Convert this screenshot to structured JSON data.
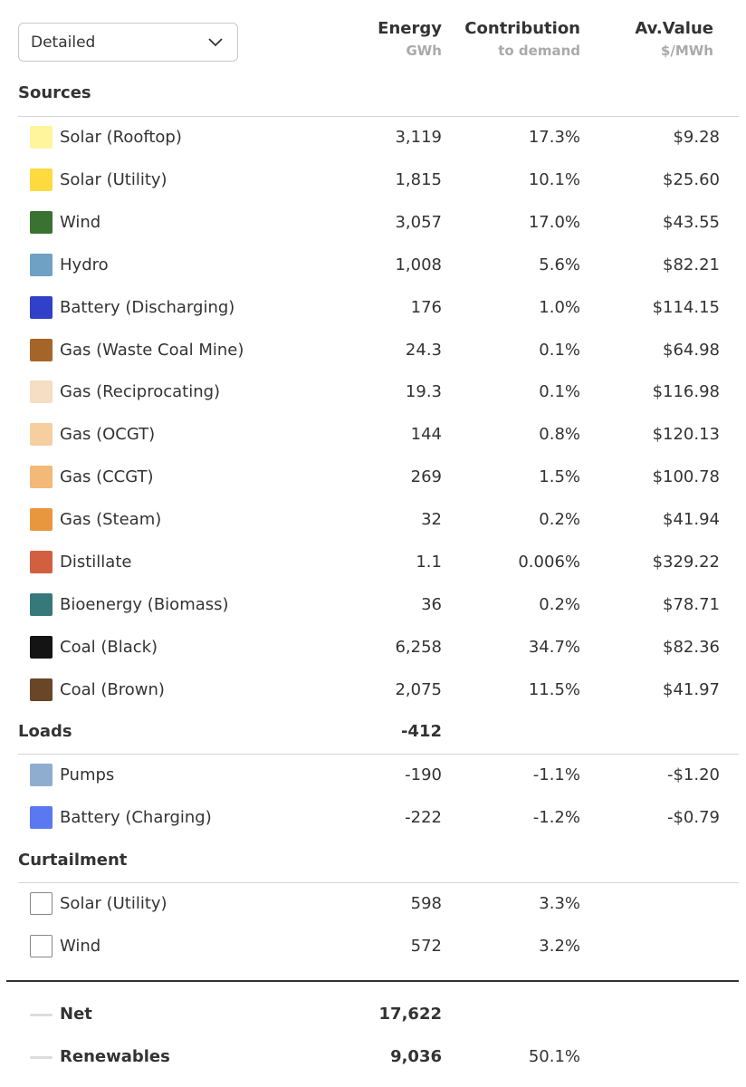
{
  "dropdown": {
    "value": "Detailed",
    "icon": "chevron-down-icon"
  },
  "columns": {
    "energy": {
      "title": "Energy",
      "unit": "GWh"
    },
    "contribution": {
      "title": "Contribution",
      "unit": "to demand"
    },
    "value": {
      "title": "Av.Value",
      "unit": "$/MWh"
    }
  },
  "sources": {
    "title": "Sources",
    "items": [
      {
        "name": "Solar (Rooftop)",
        "color": "#FFF59D",
        "energy": "3,119",
        "contribution": "17.3%",
        "value": "$9.28"
      },
      {
        "name": "Solar (Utility)",
        "color": "#FDDB40",
        "energy": "1,815",
        "contribution": "10.1%",
        "value": "$25.60"
      },
      {
        "name": "Wind",
        "color": "#3A7331",
        "energy": "3,057",
        "contribution": "17.0%",
        "value": "$43.55"
      },
      {
        "name": "Hydro",
        "color": "#6FA1C4",
        "energy": "1,008",
        "contribution": "5.6%",
        "value": "$82.21"
      },
      {
        "name": "Battery (Discharging)",
        "color": "#3040C8",
        "energy": "176",
        "contribution": "1.0%",
        "value": "$114.15"
      },
      {
        "name": "Gas (Waste Coal Mine)",
        "color": "#A56428",
        "energy": "24.3",
        "contribution": "0.1%",
        "value": "$64.98"
      },
      {
        "name": "Gas (Reciprocating)",
        "color": "#F5DEC4",
        "energy": "19.3",
        "contribution": "0.1%",
        "value": "$116.98"
      },
      {
        "name": "Gas (OCGT)",
        "color": "#F6CFA1",
        "energy": "144",
        "contribution": "0.8%",
        "value": "$120.13"
      },
      {
        "name": "Gas (CCGT)",
        "color": "#F2B978",
        "energy": "269",
        "contribution": "1.5%",
        "value": "$100.78"
      },
      {
        "name": "Gas (Steam)",
        "color": "#E8973F",
        "energy": "32",
        "contribution": "0.2%",
        "value": "$41.94"
      },
      {
        "name": "Distillate",
        "color": "#D35F41",
        "energy": "1.1",
        "contribution": "0.006%",
        "value": "$329.22"
      },
      {
        "name": "Bioenergy (Biomass)",
        "color": "#37797B",
        "energy": "36",
        "contribution": "0.2%",
        "value": "$78.71"
      },
      {
        "name": "Coal (Black)",
        "color": "#141414",
        "energy": "6,258",
        "contribution": "34.7%",
        "value": "$82.36"
      },
      {
        "name": "Coal (Brown)",
        "color": "#6A4628",
        "energy": "2,075",
        "contribution": "11.5%",
        "value": "$41.97"
      }
    ]
  },
  "loads": {
    "title": "Loads",
    "total": "-412",
    "items": [
      {
        "name": "Pumps",
        "color": "#8EADCF",
        "energy": "-190",
        "contribution": "-1.1%",
        "value": "-$1.20"
      },
      {
        "name": "Battery (Charging)",
        "color": "#5A78F0",
        "energy": "-222",
        "contribution": "-1.2%",
        "value": "-$0.79"
      }
    ]
  },
  "curtailment": {
    "title": "Curtailment",
    "items": [
      {
        "name": "Solar (Utility)",
        "energy": "598",
        "contribution": "3.3%"
      },
      {
        "name": "Wind",
        "energy": "572",
        "contribution": "3.2%"
      }
    ]
  },
  "summary": [
    {
      "name": "Net",
      "energy": "17,622",
      "contribution": ""
    },
    {
      "name": "Renewables",
      "energy": "9,036",
      "contribution": "50.1%"
    }
  ]
}
